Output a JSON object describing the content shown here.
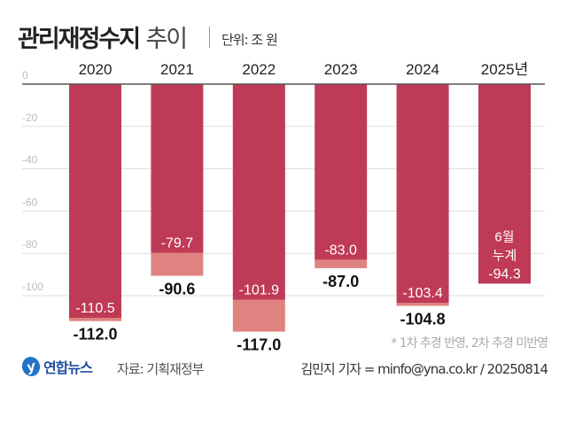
{
  "header": {
    "title_bold": "관리재정수지",
    "title_light": "추이",
    "unit": "단위: 조 원"
  },
  "chart_data": {
    "type": "bar",
    "title": "관리재정수지 추이",
    "unit": "조 원",
    "categories": [
      "2020",
      "2021",
      "2022",
      "2023",
      "2024",
      "2025년"
    ],
    "series": [
      {
        "values": [
          -110.5,
          -79.7,
          -101.9,
          -83.0,
          -103.4,
          -94.3
        ],
        "labels": [
          "-110.5",
          "-79.7",
          "-101.9",
          "-83.0",
          "-103.4",
          "-94.3"
        ],
        "color": "#bf3a56"
      },
      {
        "values": [
          -112.0,
          -90.6,
          -117.0,
          -87.0,
          -104.8,
          null
        ],
        "labels": [
          "-112.0",
          "-90.6",
          "-117.0",
          "-87.0",
          "-104.8",
          ""
        ],
        "color": "#e08380"
      }
    ],
    "annotation_2025": [
      "6월",
      "누계"
    ],
    "yticks": [
      0,
      -20,
      -40,
      -60,
      -80,
      -100
    ],
    "ytick_labels": [
      "0",
      "-20",
      "-40",
      "-60",
      "-80",
      "-100"
    ],
    "ylim": [
      -120,
      0
    ],
    "grid": true
  },
  "footer": {
    "note": "* 1차 추경 반영, 2차 추경 미반영",
    "logo": "연합뉴스",
    "source": "자료: 기획재정부",
    "credit": "김민지 기자 = minfo@yna.co.kr / 20250814"
  }
}
